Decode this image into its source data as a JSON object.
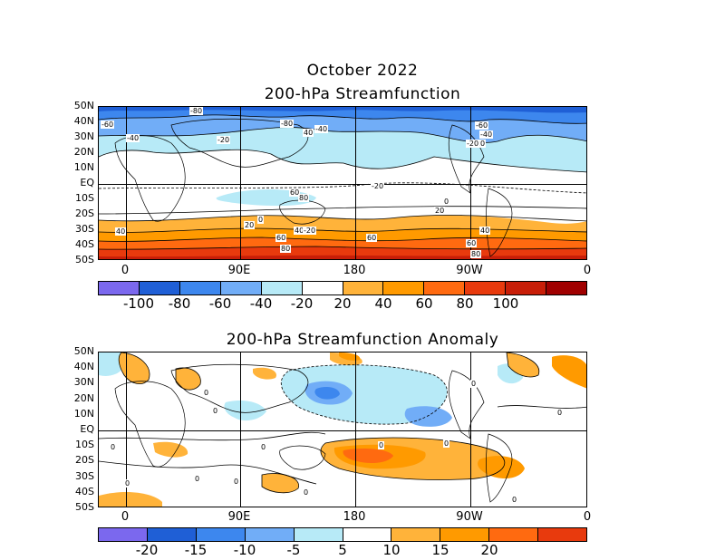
{
  "header": {
    "title": "October 2022",
    "panel1_title": "200-hPa Streamfunction",
    "panel2_title": "200-hPa Streamfunction Anomaly"
  },
  "axes": {
    "lat_labels": [
      "50N",
      "40N",
      "30N",
      "20N",
      "10N",
      "EQ",
      "10S",
      "20S",
      "30S",
      "40S",
      "50S"
    ],
    "lon_labels": [
      "0",
      "90E",
      "180",
      "90W",
      "0"
    ]
  },
  "panel1": {
    "colorbar_colors": [
      "#7b68ee",
      "#1f5fd6",
      "#3d87ee",
      "#71adf7",
      "#b7eaf7",
      "#ffffff",
      "#ffb33a",
      "#ff9a00",
      "#ff6a10",
      "#e83a0d",
      "#c81e08",
      "#a00000"
    ],
    "colorbar_labels": [
      "-100",
      "-80",
      "-60",
      "-40",
      "-20",
      "20",
      "40",
      "60",
      "80",
      "100"
    ],
    "contour_labels": [
      "-80",
      "-60",
      "-40",
      "-20",
      "-20",
      "-20",
      "20",
      "20",
      "40",
      "40",
      "40",
      "60",
      "60",
      "80",
      "80",
      "-60",
      "-40",
      "-20",
      "-80",
      "40",
      "60",
      "80",
      "60",
      "0",
      "0",
      "-20",
      "-40"
    ]
  },
  "panel2": {
    "colorbar_colors": [
      "#7b68ee",
      "#1f5fd6",
      "#3d87ee",
      "#71adf7",
      "#b7eaf7",
      "#ffffff",
      "#ffb33a",
      "#ff9a00",
      "#ff6a10",
      "#e83a0d"
    ],
    "colorbar_labels": [
      "-20",
      "-15",
      "-10",
      "-5",
      "5",
      "10",
      "15",
      "20"
    ],
    "contour_labels": [
      "0",
      "0",
      "0",
      "0",
      "0",
      "0",
      "0",
      "0",
      "0",
      "0",
      "0",
      "0",
      "0"
    ]
  }
}
